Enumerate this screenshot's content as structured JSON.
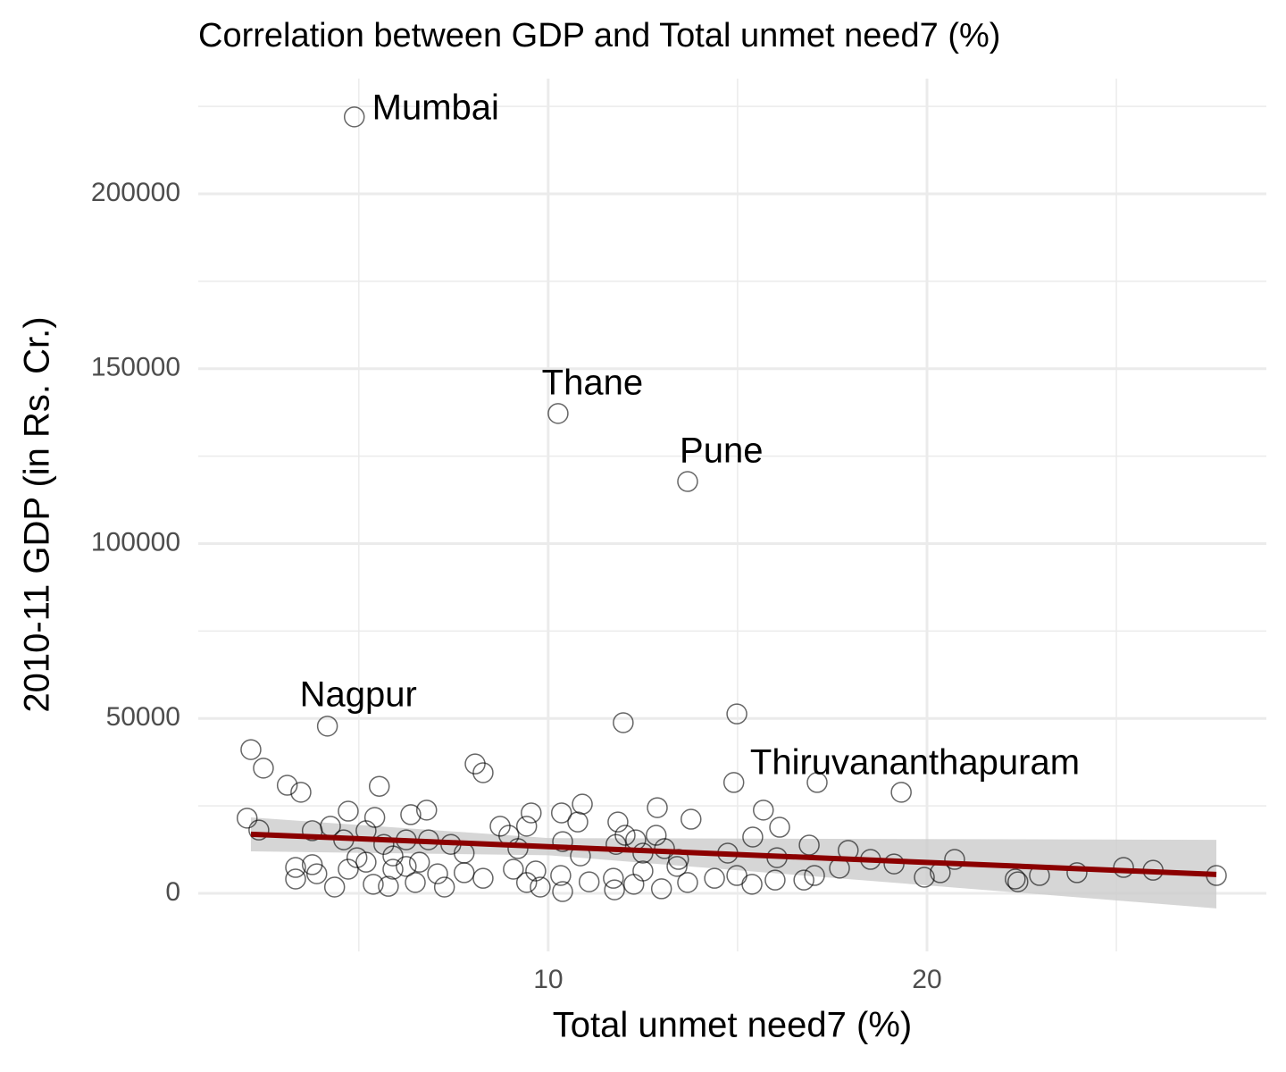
{
  "chart_data": {
    "type": "scatter",
    "title": "Correlation between GDP and Total unmet need7 (%)",
    "x_label": "Total unmet need7 (%)",
    "y_label": "2010-11 GDP (in Rs. Cr.)",
    "xlim": [
      0.76,
      28.96
    ],
    "ylim": [
      -16600,
      232950
    ],
    "xticks": [
      10,
      20
    ],
    "yticks": [
      0,
      50000,
      100000,
      150000,
      200000
    ],
    "xminor": [
      5,
      15,
      25
    ],
    "yminor": [
      25000,
      75000,
      125000,
      175000,
      225000
    ],
    "grid": true,
    "point_color": "#000000",
    "x": [
      4.88,
      10.26,
      13.68,
      4.17,
      17.1,
      11.98,
      14.98,
      2.15,
      2.48,
      3.11,
      3.47,
      5.54,
      8.07,
      8.28,
      10.9,
      14.9,
      19.32,
      2.05,
      2.36,
      4.72,
      6.79,
      9.55,
      10.35,
      10.78,
      12.88,
      13.77,
      15.68,
      11.84,
      16.11,
      15.4,
      16.89,
      17.92,
      18.51,
      19.13,
      20.73,
      19.93,
      20.35,
      22.33,
      22.97,
      23.96,
      25.19,
      25.97,
      27.64,
      22.4,
      3.33,
      3.33,
      3.77,
      3.89,
      4.36,
      4.72,
      5.19,
      5.38,
      5.9,
      5.78,
      6.25,
      6.49,
      7.08,
      7.26,
      7.78,
      8.28,
      9.08,
      9.43,
      9.67,
      9.79,
      10.38,
      10.33,
      11.08,
      11.72,
      11.75,
      12.26,
      12.5,
      12.99,
      13.4,
      13.68,
      14.39,
      14.98,
      15.38,
      15.99,
      16.75,
      17.03,
      17.69,
      3.77,
      4.25,
      4.6,
      5.19,
      5.42,
      5.66,
      6.25,
      6.37,
      6.84,
      7.43,
      7.78,
      8.73,
      8.96,
      9.2,
      9.43,
      10.38,
      10.85,
      11.79,
      12.03,
      12.31,
      12.5,
      12.85,
      13.07,
      13.44,
      14.74,
      16.04,
      5.9,
      6.6,
      4.95
    ],
    "values": [
      222000,
      137200,
      117750,
      47800,
      31700,
      48800,
      51300,
      41100,
      35800,
      30900,
      28900,
      30600,
      37000,
      34500,
      25500,
      31700,
      28900,
      21500,
      18100,
      23500,
      23800,
      23000,
      23000,
      20400,
      24500,
      21200,
      23800,
      20400,
      18900,
      16100,
      13800,
      12300,
      9700,
      8400,
      9700,
      4600,
      5900,
      4100,
      5100,
      5900,
      7400,
      6600,
      5100,
      3300,
      7400,
      4100,
      8200,
      5600,
      1800,
      6900,
      8900,
      2600,
      6900,
      2000,
      7700,
      3100,
      5600,
      1800,
      5900,
      4300,
      6900,
      3100,
      6400,
      1800,
      500,
      5100,
      3300,
      4300,
      1000,
      2600,
      6400,
      1300,
      7700,
      3100,
      4300,
      5100,
      2600,
      3800,
      3800,
      5100,
      7200,
      17900,
      19200,
      15300,
      17900,
      21700,
      14000,
      15300,
      22500,
      15300,
      14000,
      11500,
      19200,
      16600,
      12800,
      19200,
      14800,
      10700,
      14000,
      16600,
      15300,
      11500,
      16600,
      12800,
      9700,
      11500,
      10200,
      10700,
      8900,
      10200
    ],
    "labels": [
      {
        "text": "Mumbai",
        "x": 5.35,
        "y": 224000
      },
      {
        "text": "Thane",
        "x": 9.83,
        "y": 145300
      },
      {
        "text": "Pune",
        "x": 13.47,
        "y": 125900
      },
      {
        "text": "Nagpur",
        "x": 3.44,
        "y": 56200
      },
      {
        "text": "Thiruvananthapuram",
        "x": 15.33,
        "y": 36800
      }
    ],
    "trend": {
      "color": "#8b0000",
      "band_color": "#cccccc",
      "x": [
        2.15,
        10,
        27.64
      ],
      "values": [
        16900,
        13360,
        5400
      ],
      "lower": [
        12000,
        10900,
        -4300
      ],
      "upper": [
        21700,
        15800,
        15300
      ]
    }
  }
}
